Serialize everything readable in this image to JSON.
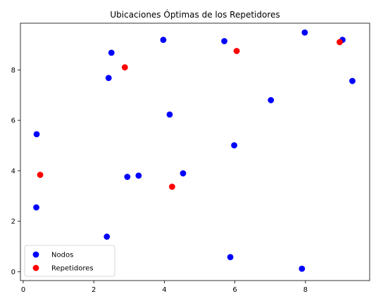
{
  "chart_data": {
    "type": "scatter",
    "title": "Ubicaciones Óptimas de los Repetidores",
    "xlabel": "",
    "ylabel": "",
    "xlim": [
      -0.08,
      9.82
    ],
    "ylim": [
      -0.35,
      9.85
    ],
    "xticks": [
      0,
      2,
      4,
      6,
      8
    ],
    "yticks": [
      0,
      2,
      4,
      6,
      8
    ],
    "grid": false,
    "legend_position": "lower-left",
    "series": [
      {
        "name": "Nodos",
        "color": "#0000ff",
        "x": [
          0.38,
          0.37,
          2.42,
          2.5,
          3.97,
          5.7,
          7.98,
          9.05,
          9.33,
          7.02,
          4.15,
          5.98,
          2.95,
          3.27,
          4.53,
          2.37,
          5.87,
          7.9
        ],
        "y": [
          5.45,
          2.55,
          7.68,
          8.68,
          9.19,
          9.14,
          9.48,
          9.19,
          7.56,
          6.8,
          6.23,
          5.01,
          3.76,
          3.81,
          3.9,
          1.39,
          0.58,
          0.12
        ]
      },
      {
        "name": "Repetidores",
        "color": "#ff0000",
        "x": [
          0.48,
          2.88,
          6.05,
          8.97,
          4.22
        ],
        "y": [
          3.84,
          8.1,
          8.75,
          9.1,
          3.37
        ]
      }
    ]
  }
}
